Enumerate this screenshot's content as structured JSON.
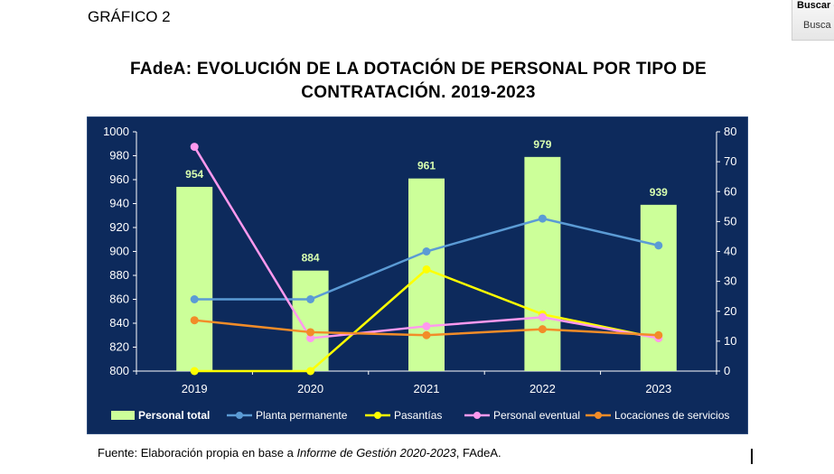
{
  "header": {
    "grafico_label": "GRÁFICO 2"
  },
  "search_widget": {
    "title": "Buscar (",
    "button_label": "Busca"
  },
  "footer": {
    "source_prefix": "Fuente: Elaboración propia en base a ",
    "source_italic": "Informe de Gestión 2020-2023",
    "source_suffix": ", FAdeA."
  },
  "chart_data": {
    "type": "bar",
    "title_line1": "FAdeA: EVOLUCIÓN DE LA DOTACIÓN DE PERSONAL POR TIPO DE",
    "title_line2": "CONTRATACIÓN. 2019-2023",
    "categories": [
      "2019",
      "2020",
      "2021",
      "2022",
      "2023"
    ],
    "y_left": {
      "min": 800,
      "max": 1000,
      "ticks": [
        800,
        820,
        840,
        860,
        880,
        900,
        920,
        940,
        960,
        980,
        1000
      ]
    },
    "y_right": {
      "min": 0,
      "max": 80,
      "ticks": [
        0,
        10,
        20,
        30,
        40,
        50,
        60,
        70,
        80
      ]
    },
    "grid": false,
    "legend_position": "bottom",
    "background_color": "#0d2a5c",
    "series": [
      {
        "name": "Personal total",
        "type": "bar",
        "axis": "left",
        "color": "#ccff99",
        "values": [
          954,
          884,
          961,
          979,
          939
        ],
        "labels": [
          "954",
          "884",
          "961",
          "979",
          "939"
        ]
      },
      {
        "name": "Planta permanente",
        "type": "line",
        "axis": "right",
        "color": "#5b9bd5",
        "values": [
          24,
          24,
          40,
          51,
          42
        ]
      },
      {
        "name": "Pasantías",
        "type": "line",
        "axis": "right",
        "color": "#ffff00",
        "values": [
          0,
          0,
          34,
          19,
          11
        ]
      },
      {
        "name": "Personal eventual",
        "type": "line",
        "axis": "right",
        "color": "#ff99ee",
        "values": [
          75,
          11,
          15,
          18,
          11
        ]
      },
      {
        "name": "Locaciones de servicios",
        "type": "line",
        "axis": "right",
        "color": "#f28c28",
        "values": [
          17,
          13,
          12,
          14,
          12
        ]
      }
    ]
  }
}
